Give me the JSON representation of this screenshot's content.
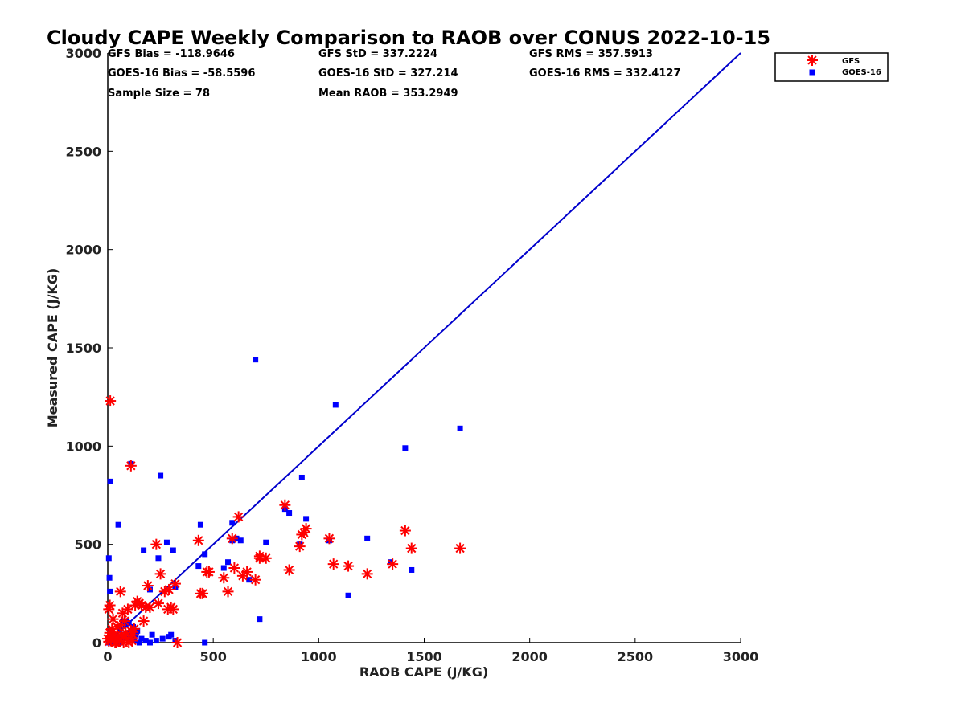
{
  "chart_data": {
    "type": "scatter",
    "title": "Cloudy CAPE Weekly Comparison to RAOB over CONUS 2022-10-15",
    "xlabel": "RAOB CAPE (J/KG)",
    "ylabel": "Measured CAPE (J/KG)",
    "xlim": [
      0,
      3000
    ],
    "ylim": [
      0,
      3000
    ],
    "xticks": [
      0,
      500,
      1000,
      1500,
      2000,
      2500,
      3000
    ],
    "yticks": [
      0,
      500,
      1000,
      1500,
      2000,
      2500,
      3000
    ],
    "grid": false,
    "legend_position": "top-right",
    "stats": [
      "GFS Bias = -118.9646",
      "GFS StD = 337.2224",
      "GFS RMS = 357.5913",
      "GOES-16 Bias = -58.5596",
      "GOES-16 StD = 327.214",
      "GOES-16 RMS = 332.4127",
      "Sample Size = 78",
      "Mean RAOB = 353.2949"
    ],
    "reference_line": {
      "x": [
        0,
        3000
      ],
      "y": [
        0,
        3000
      ],
      "color": "#0000cc"
    },
    "series": [
      {
        "name": "GFS",
        "marker": "asterisk",
        "color": "#ff0000",
        "points": [
          [
            12,
            1230
          ],
          [
            110,
            900
          ],
          [
            5,
            170
          ],
          [
            10,
            190
          ],
          [
            20,
            70
          ],
          [
            30,
            40
          ],
          [
            15,
            10
          ],
          [
            40,
            0
          ],
          [
            50,
            30
          ],
          [
            60,
            90
          ],
          [
            70,
            150
          ],
          [
            80,
            110
          ],
          [
            90,
            20
          ],
          [
            100,
            0
          ],
          [
            110,
            60
          ],
          [
            120,
            40
          ],
          [
            130,
            190
          ],
          [
            140,
            210
          ],
          [
            150,
            200
          ],
          [
            170,
            110
          ],
          [
            180,
            180
          ],
          [
            190,
            290
          ],
          [
            230,
            500
          ],
          [
            250,
            350
          ],
          [
            270,
            260
          ],
          [
            290,
            270
          ],
          [
            300,
            180
          ],
          [
            310,
            170
          ],
          [
            320,
            300
          ],
          [
            330,
            0
          ],
          [
            430,
            520
          ],
          [
            440,
            250
          ],
          [
            450,
            250
          ],
          [
            470,
            360
          ],
          [
            550,
            330
          ],
          [
            570,
            260
          ],
          [
            590,
            530
          ],
          [
            600,
            380
          ],
          [
            620,
            640
          ],
          [
            640,
            340
          ],
          [
            660,
            360
          ],
          [
            700,
            320
          ],
          [
            720,
            430
          ],
          [
            750,
            430
          ],
          [
            840,
            700
          ],
          [
            860,
            370
          ],
          [
            910,
            490
          ],
          [
            920,
            550
          ],
          [
            940,
            580
          ],
          [
            1050,
            530
          ],
          [
            1070,
            400
          ],
          [
            1140,
            390
          ],
          [
            1230,
            350
          ],
          [
            1350,
            400
          ],
          [
            1410,
            570
          ],
          [
            1440,
            480
          ],
          [
            1670,
            480
          ],
          [
            60,
            260
          ],
          [
            0,
            20
          ],
          [
            10,
            50
          ],
          [
            25,
            120
          ],
          [
            45,
            80
          ],
          [
            85,
            50
          ],
          [
            95,
            170
          ],
          [
            35,
            0
          ],
          [
            55,
            10
          ],
          [
            75,
            0
          ],
          [
            5,
            5
          ],
          [
            65,
            40
          ],
          [
            115,
            10
          ],
          [
            125,
            70
          ],
          [
            160,
            190
          ],
          [
            200,
            180
          ],
          [
            240,
            200
          ],
          [
            285,
            170
          ],
          [
            480,
            360
          ],
          [
            720,
            440
          ],
          [
            930,
            560
          ]
        ]
      },
      {
        "name": "GOES-16",
        "marker": "square",
        "color": "#0000ff",
        "points": [
          [
            12,
            820
          ],
          [
            110,
            910
          ],
          [
            5,
            430
          ],
          [
            8,
            330
          ],
          [
            10,
            260
          ],
          [
            50,
            600
          ],
          [
            170,
            470
          ],
          [
            200,
            270
          ],
          [
            240,
            430
          ],
          [
            250,
            850
          ],
          [
            280,
            510
          ],
          [
            310,
            470
          ],
          [
            320,
            280
          ],
          [
            300,
            40
          ],
          [
            200,
            0
          ],
          [
            150,
            0
          ],
          [
            120,
            80
          ],
          [
            100,
            100
          ],
          [
            90,
            110
          ],
          [
            80,
            30
          ],
          [
            60,
            0
          ],
          [
            40,
            10
          ],
          [
            20,
            0
          ],
          [
            5,
            0
          ],
          [
            430,
            390
          ],
          [
            440,
            600
          ],
          [
            460,
            450
          ],
          [
            460,
            0
          ],
          [
            550,
            380
          ],
          [
            570,
            410
          ],
          [
            590,
            520
          ],
          [
            590,
            610
          ],
          [
            610,
            530
          ],
          [
            630,
            520
          ],
          [
            670,
            320
          ],
          [
            700,
            1440
          ],
          [
            720,
            120
          ],
          [
            750,
            510
          ],
          [
            840,
            680
          ],
          [
            860,
            660
          ],
          [
            910,
            500
          ],
          [
            920,
            840
          ],
          [
            940,
            630
          ],
          [
            1050,
            520
          ],
          [
            1080,
            1210
          ],
          [
            1140,
            240
          ],
          [
            1230,
            530
          ],
          [
            1340,
            410
          ],
          [
            1410,
            990
          ],
          [
            1440,
            370
          ],
          [
            1670,
            1090
          ],
          [
            130,
            40
          ],
          [
            110,
            10
          ],
          [
            70,
            20
          ],
          [
            30,
            40
          ],
          [
            15,
            60
          ],
          [
            25,
            20
          ],
          [
            45,
            5
          ],
          [
            55,
            30
          ],
          [
            85,
            90
          ],
          [
            95,
            50
          ],
          [
            105,
            20
          ],
          [
            115,
            30
          ],
          [
            125,
            10
          ],
          [
            135,
            50
          ],
          [
            60,
            70
          ],
          [
            75,
            110
          ],
          [
            35,
            15
          ],
          [
            65,
            5
          ],
          [
            10,
            10
          ],
          [
            140,
            60
          ],
          [
            160,
            20
          ],
          [
            180,
            10
          ],
          [
            210,
            40
          ],
          [
            230,
            10
          ],
          [
            260,
            20
          ],
          [
            290,
            30
          ],
          [
            320,
            10
          ]
        ]
      }
    ]
  }
}
